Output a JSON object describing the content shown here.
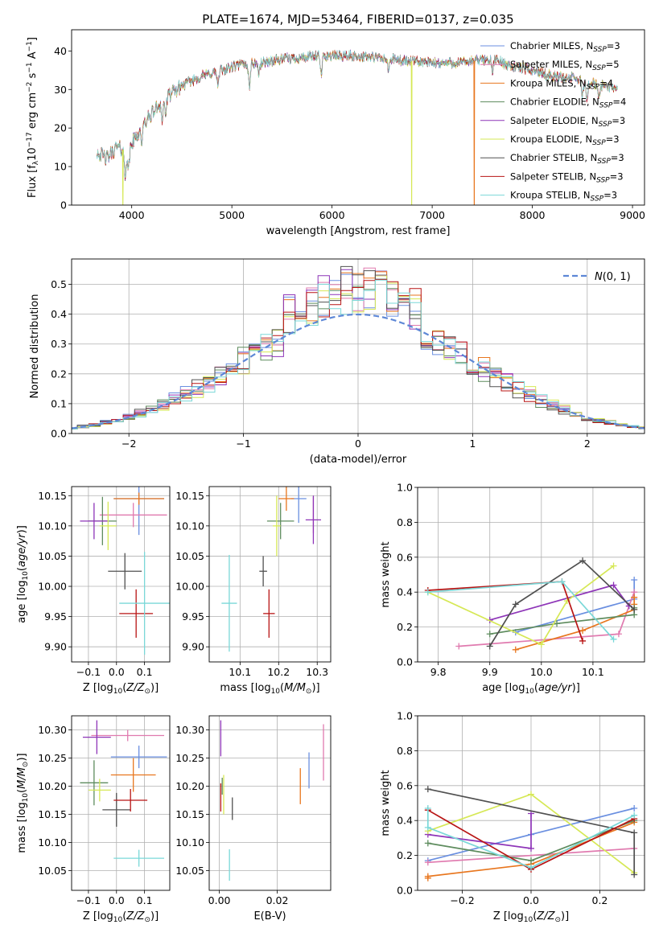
{
  "figure_title": "PLATE=1674, MJD=53464, FIBERID=0137, z=0.035",
  "colors": [
    "#6a8fe0",
    "#e07aaf",
    "#e8761e",
    "#5e8c5e",
    "#8e35b8",
    "#d6e856",
    "#505050",
    "#b81414",
    "#7ad8d8"
  ],
  "chart_data": [
    {
      "id": "spectrum",
      "type": "line",
      "title": "PLATE=1674, MJD=53464, FIBERID=0137, z=0.035",
      "xlabel": "wavelength [Angstrom, rest frame]",
      "ylabel": "Flux [f_λ10^-17 erg cm^-2 s^-1 A^-1]",
      "xlim": [
        3400,
        9120
      ],
      "ylim": [
        0,
        45.5
      ],
      "xticks": [
        4000,
        5000,
        6000,
        7000,
        8000,
        9000
      ],
      "yticks": [
        0,
        10,
        20,
        30,
        40
      ],
      "grid": false,
      "legend_position": "top-right",
      "legend": [
        "Chabrier MILES, N_SSP=3",
        "Salpeter MILES, N_SSP=5",
        "Kroupa MILES, N_SSP=4",
        "Chabrier ELODIE, N_SSP=4",
        "Salpeter ELODIE, N_SSP=3",
        "Kroupa ELODIE, N_SSP=3",
        "Chabrier STELIB, N_SSP=3",
        "Salpeter STELIB, N_SSP=3",
        "Kroupa STELIB, N_SSP=3"
      ],
      "continuum_x": [
        3650,
        3750,
        3850,
        3950,
        4050,
        4150,
        4300,
        4500,
        4700,
        4900,
        5100,
        5300,
        5500,
        5800,
        6000,
        6300,
        6600,
        7000,
        7300,
        7600,
        7800,
        8000,
        8200,
        8400,
        8600,
        8850
      ],
      "continuum_y": [
        14,
        12,
        15,
        14,
        18,
        22,
        27,
        31,
        33.5,
        35,
        36.5,
        37,
        37.8,
        38.5,
        38.8,
        38.6,
        37.8,
        36.8,
        37,
        38,
        36,
        35,
        33.5,
        33,
        31.5,
        30.5
      ]
    },
    {
      "id": "residuals",
      "type": "histogram",
      "xlabel": "(data-model)/error",
      "ylabel": "Normed distribution",
      "xlim": [
        -2.5,
        2.5
      ],
      "ylim": [
        0,
        0.585
      ],
      "xticks": [
        -2,
        -1,
        0,
        1,
        2
      ],
      "yticks": [
        0.0,
        0.1,
        0.2,
        0.3,
        0.4,
        0.5
      ],
      "grid": true,
      "legend_position": "top-right",
      "reference_curve": "N(0, 1)",
      "bin_width": 0.1
    },
    {
      "id": "age-vs-Z",
      "type": "errorbar",
      "xlabel": "Z [log10(Z/Z_sun)]",
      "ylabel": "age  [log10(age/yr)]",
      "xlim": [
        -0.16,
        0.19
      ],
      "ylim": [
        9.875,
        10.165
      ],
      "xticks": [
        -0.1,
        0.0,
        0.1
      ],
      "yticks": [
        9.9,
        9.95,
        10.0,
        10.05,
        10.1,
        10.15
      ],
      "grid": true,
      "points": [
        {
          "x": 0.08,
          "xerr": 0.09,
          "y": 10.145,
          "yerr": 0.06
        },
        {
          "x": 0.06,
          "xerr": 0.12,
          "y": 10.118,
          "yerr": 0.02
        },
        {
          "x": 0.08,
          "xerr": 0.09,
          "y": 10.145,
          "yerr": 0.01
        },
        {
          "x": -0.05,
          "xerr": 0.05,
          "y": 10.108,
          "yerr": 0.04
        },
        {
          "x": -0.08,
          "xerr": 0.05,
          "y": 10.108,
          "yerr": 0.03
        },
        {
          "x": -0.03,
          "xerr": 0.03,
          "y": 10.1,
          "yerr": 0.04
        },
        {
          "x": 0.03,
          "xerr": 0.06,
          "y": 10.025,
          "yerr": 0.03
        },
        {
          "x": 0.07,
          "xerr": 0.06,
          "y": 9.955,
          "yerr": 0.04
        },
        {
          "x": 0.1,
          "xerr": 0.09,
          "y": 9.972,
          "yerr": 0.085
        }
      ]
    },
    {
      "id": "age-vs-mass",
      "type": "errorbar",
      "xlabel": "mass [log10(M/M_sun)]",
      "ylabel": "",
      "xlim": [
        10.02,
        10.335
      ],
      "ylim": [
        9.875,
        10.165
      ],
      "xticks": [
        10.1,
        10.2,
        10.3
      ],
      "yticks": [
        9.9,
        9.95,
        10.0,
        10.05,
        10.1,
        10.15
      ],
      "grid": true,
      "points": [
        {
          "x": 10.252,
          "xerr": 0.02,
          "y": 10.145,
          "yerr": 0.04
        },
        {
          "x": 10.29,
          "xerr": 0.0,
          "y": 10.118,
          "yerr": 0.03
        },
        {
          "x": 10.22,
          "xerr": 0.02,
          "y": 10.145,
          "yerr": 0.02
        },
        {
          "x": 10.205,
          "xerr": 0.035,
          "y": 10.108,
          "yerr": 0.03
        },
        {
          "x": 10.29,
          "xerr": 0.02,
          "y": 10.11,
          "yerr": 0.04
        },
        {
          "x": 10.195,
          "xerr": 0.01,
          "y": 10.1,
          "yerr": 0.05
        },
        {
          "x": 10.16,
          "xerr": 0.01,
          "y": 10.025,
          "yerr": 0.025
        },
        {
          "x": 10.175,
          "xerr": 0.015,
          "y": 9.955,
          "yerr": 0.04
        },
        {
          "x": 10.072,
          "xerr": 0.02,
          "y": 9.972,
          "yerr": 0.08
        }
      ]
    },
    {
      "id": "mass-weight-vs-age",
      "type": "line",
      "xlabel": "age  [log10(age/yr)]",
      "ylabel": "mass weight",
      "xlim": [
        9.76,
        10.2
      ],
      "ylim": [
        0.0,
        1.0
      ],
      "xticks": [
        9.8,
        9.9,
        10.0,
        10.1
      ],
      "yticks": [
        0.0,
        0.2,
        0.4,
        0.6,
        0.8,
        1.0
      ],
      "grid": true,
      "series": [
        {
          "x": [
            9.95,
            10.18,
            10.18
          ],
          "y": [
            0.17,
            0.36,
            0.47
          ]
        },
        {
          "x": [
            9.84,
            10.15,
            10.18
          ],
          "y": [
            0.09,
            0.16,
            0.4
          ]
        },
        {
          "x": [
            9.95,
            10.08,
            10.18,
            10.18,
            10.18
          ],
          "y": [
            0.07,
            0.18,
            0.3,
            0.33,
            0.37
          ]
        },
        {
          "x": [
            9.9,
            10.03,
            10.18,
            10.18
          ],
          "y": [
            0.16,
            0.22,
            0.27,
            0.31
          ]
        },
        {
          "x": [
            9.9,
            10.14,
            10.17
          ],
          "y": [
            0.24,
            0.44,
            0.32
          ]
        },
        {
          "x": [
            9.78,
            10.0,
            10.05,
            10.14
          ],
          "y": [
            0.4,
            0.1,
            0.35,
            0.55
          ]
        },
        {
          "x": [
            9.9,
            9.95,
            10.08,
            10.18
          ],
          "y": [
            0.09,
            0.33,
            0.58,
            0.3
          ]
        },
        {
          "x": [
            9.78,
            10.04,
            10.08
          ],
          "y": [
            0.41,
            0.46,
            0.12
          ]
        },
        {
          "x": [
            9.78,
            10.04,
            10.14
          ],
          "y": [
            0.4,
            0.46,
            0.13
          ]
        }
      ]
    },
    {
      "id": "mass-vs-Z",
      "type": "errorbar",
      "xlabel": "Z [log10(Z/Z_sun)]",
      "ylabel": "mass [log10(M/M_sun)]",
      "xlim": [
        -0.16,
        0.19
      ],
      "ylim": [
        10.015,
        10.325
      ],
      "xticks": [
        -0.1,
        0.0,
        0.1
      ],
      "yticks": [
        10.05,
        10.1,
        10.15,
        10.2,
        10.25,
        10.3
      ],
      "grid": true,
      "points": [
        {
          "x": 0.08,
          "xerr": 0.1,
          "y": 10.252,
          "yerr": 0.02
        },
        {
          "x": 0.04,
          "xerr": 0.13,
          "y": 10.29,
          "yerr": 0.01
        },
        {
          "x": 0.06,
          "xerr": 0.08,
          "y": 10.22,
          "yerr": 0.03
        },
        {
          "x": -0.08,
          "xerr": 0.05,
          "y": 10.206,
          "yerr": 0.04
        },
        {
          "x": -0.07,
          "xerr": 0.05,
          "y": 10.287,
          "yerr": 0.03
        },
        {
          "x": -0.06,
          "xerr": 0.04,
          "y": 10.193,
          "yerr": 0.02
        },
        {
          "x": 0.0,
          "xerr": 0.05,
          "y": 10.158,
          "yerr": 0.03
        },
        {
          "x": 0.05,
          "xerr": 0.06,
          "y": 10.175,
          "yerr": 0.02
        },
        {
          "x": 0.08,
          "xerr": 0.09,
          "y": 10.072,
          "yerr": 0.015
        }
      ]
    },
    {
      "id": "mass-vs-EBV",
      "type": "errorbar",
      "xlabel": "E(B-V)",
      "ylabel": "",
      "xlim": [
        -0.0035,
        0.0385
      ],
      "ylim": [
        10.015,
        10.325
      ],
      "xticks": [
        0.0,
        0.02
      ],
      "yticks": [
        10.05,
        10.1,
        10.15,
        10.2,
        10.25,
        10.3
      ],
      "grid": true,
      "points": [
        {
          "x": 0.031,
          "xerr": 0.0,
          "y": 10.228,
          "yerr": 0.032
        },
        {
          "x": 0.036,
          "xerr": 0.0,
          "y": 10.26,
          "yerr": 0.05
        },
        {
          "x": 0.028,
          "xerr": 0.0,
          "y": 10.2,
          "yerr": 0.032
        },
        {
          "x": 0.001,
          "xerr": 0.0,
          "y": 10.2,
          "yerr": 0.015
        },
        {
          "x": 0.0005,
          "xerr": 0.0,
          "y": 10.285,
          "yerr": 0.032
        },
        {
          "x": 0.0015,
          "xerr": 0.0,
          "y": 10.185,
          "yerr": 0.035
        },
        {
          "x": 0.0045,
          "xerr": 0.0,
          "y": 10.16,
          "yerr": 0.02
        },
        {
          "x": 0.0005,
          "xerr": 0.0,
          "y": 10.18,
          "yerr": 0.025
        },
        {
          "x": 0.0035,
          "xerr": 0.0,
          "y": 10.06,
          "yerr": 0.028
        }
      ]
    },
    {
      "id": "mass-weight-vs-Z",
      "type": "line",
      "xlabel": "Z [log10(Z/Z_sun)]",
      "ylabel": "mass weight",
      "xlim": [
        -0.33,
        0.33
      ],
      "ylim": [
        0.0,
        1.0
      ],
      "xticks": [
        -0.2,
        0.0,
        0.2
      ],
      "yticks": [
        0.0,
        0.2,
        0.4,
        0.6,
        0.8,
        1.0
      ],
      "grid": true,
      "series": [
        {
          "x": [
            -0.3,
            0.0,
            0.3
          ],
          "y": [
            0.17,
            0.32,
            0.47
          ]
        },
        {
          "x": [
            -0.3,
            0.3
          ],
          "y": [
            0.16,
            0.24
          ]
        },
        {
          "x": [
            -0.3,
            -0.3,
            0.0,
            0.3
          ],
          "y": [
            0.07,
            0.08,
            0.15,
            0.39
          ]
        },
        {
          "x": [
            -0.3,
            0.0,
            0.3
          ],
          "y": [
            0.27,
            0.17,
            0.4
          ]
        },
        {
          "x": [
            -0.3,
            0.0,
            0.0
          ],
          "y": [
            0.32,
            0.24,
            0.44
          ]
        },
        {
          "x": [
            -0.3,
            0.0,
            0.3
          ],
          "y": [
            0.34,
            0.55,
            0.1
          ]
        },
        {
          "x": [
            -0.3,
            0.3,
            0.3
          ],
          "y": [
            0.58,
            0.33,
            0.09
          ]
        },
        {
          "x": [
            -0.3,
            0.0,
            0.3
          ],
          "y": [
            0.46,
            0.12,
            0.41
          ]
        },
        {
          "x": [
            -0.3,
            -0.3,
            0.0,
            0.3
          ],
          "y": [
            0.47,
            0.36,
            0.13,
            0.43
          ]
        }
      ]
    }
  ]
}
